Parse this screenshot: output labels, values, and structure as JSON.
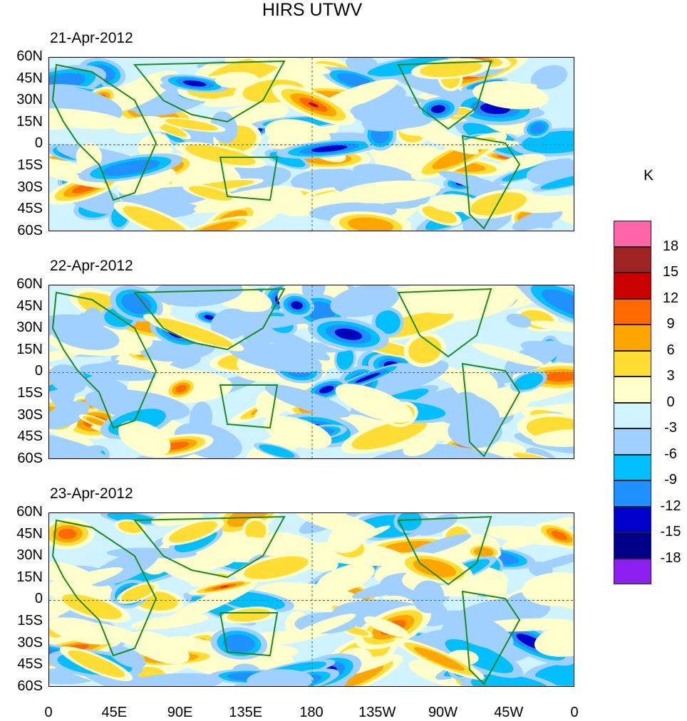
{
  "title": "HIRS UTWV",
  "panels": [
    {
      "date": "21-Apr-2012"
    },
    {
      "date": "22-Apr-2012"
    },
    {
      "date": "23-Apr-2012"
    }
  ],
  "lat_ticks": [
    "60N",
    "45N",
    "30N",
    "15N",
    "0",
    "15S",
    "30S",
    "45S",
    "60S"
  ],
  "lon_ticks": [
    "0",
    "45E",
    "90E",
    "135E",
    "180",
    "135W",
    "90W",
    "45W",
    "0"
  ],
  "colorbar": {
    "unit": "K",
    "labels": [
      "18",
      "15",
      "12",
      "9",
      "6",
      "3",
      "0",
      "-3",
      "-6",
      "-9",
      "-12",
      "-15",
      "-18"
    ],
    "colors": [
      "#ff66aa",
      "#9e2424",
      "#c80000",
      "#ff6a00",
      "#ffa500",
      "#ffdd33",
      "#ffffcc",
      "#d0f4ff",
      "#a0d0ff",
      "#00bfff",
      "#1e90ff",
      "#0000cd",
      "#00008b",
      "#8a1ff0"
    ]
  },
  "coastline_color": "#1a8a1a"
}
